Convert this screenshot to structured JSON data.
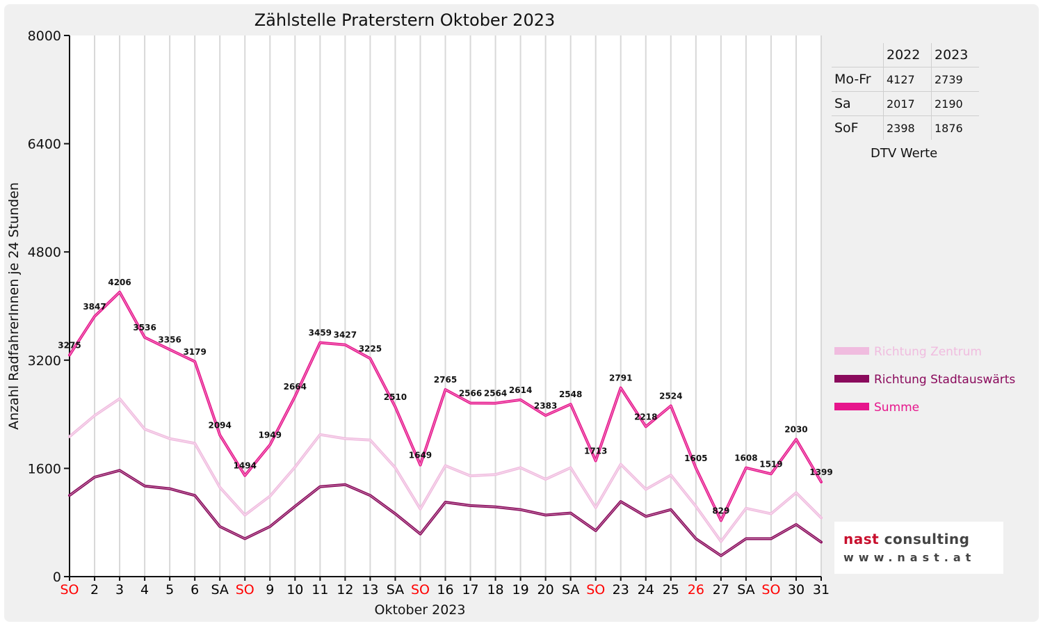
{
  "chart_data": {
    "type": "line",
    "title": "Zählstelle Praterstern Oktober 2023",
    "xlabel": "Oktober 2023",
    "ylabel": "Anzahl RadfahrerInnen je 24 Stunden",
    "ylim": [
      0,
      8000
    ],
    "yticks": [
      0,
      1600,
      3200,
      4800,
      6400,
      8000
    ],
    "grid": "vertical",
    "legend_position": "right",
    "categories": [
      "SO",
      "2",
      "3",
      "4",
      "5",
      "6",
      "SA",
      "SO",
      "9",
      "10",
      "11",
      "12",
      "13",
      "SA",
      "SO",
      "16",
      "17",
      "18",
      "19",
      "20",
      "SA",
      "SO",
      "23",
      "24",
      "25",
      "26",
      "27",
      "SA",
      "SO",
      "30",
      "31"
    ],
    "category_colors": [
      "#ff0000",
      "#000000",
      "#000000",
      "#000000",
      "#000000",
      "#000000",
      "#000000",
      "#ff0000",
      "#000000",
      "#000000",
      "#000000",
      "#000000",
      "#000000",
      "#000000",
      "#ff0000",
      "#000000",
      "#000000",
      "#000000",
      "#000000",
      "#000000",
      "#000000",
      "#ff0000",
      "#000000",
      "#000000",
      "#000000",
      "#ff0000",
      "#000000",
      "#000000",
      "#ff0000",
      "#000000",
      "#000000"
    ],
    "series": [
      {
        "name": "Richtung Zentrum",
        "color": "#f0bcdf",
        "values": [
          2070,
          2380,
          2630,
          2180,
          2040,
          1970,
          1320,
          910,
          1190,
          1620,
          2100,
          2040,
          2020,
          1610,
          1000,
          1640,
          1490,
          1510,
          1610,
          1440,
          1610,
          1020,
          1660,
          1290,
          1500,
          1040,
          520,
          1010,
          930,
          1240,
          870
        ]
      },
      {
        "name": "Richtung Stadtauswärts",
        "color": "#8a0a5c",
        "values": [
          1200,
          1470,
          1570,
          1340,
          1300,
          1200,
          740,
          560,
          740,
          1040,
          1330,
          1360,
          1200,
          930,
          630,
          1100,
          1050,
          1030,
          990,
          910,
          940,
          680,
          1110,
          890,
          990,
          560,
          310,
          560,
          560,
          770,
          510
        ]
      },
      {
        "name": "Summe",
        "color": "#e6168c",
        "values": [
          3275,
          3847,
          4206,
          3536,
          3356,
          3179,
          2094,
          1494,
          1949,
          2664,
          3459,
          3427,
          3225,
          2510,
          1649,
          2765,
          2566,
          2564,
          2614,
          2383,
          2548,
          1713,
          2791,
          2218,
          2524,
          1605,
          829,
          1608,
          1519,
          2030,
          1399
        ]
      }
    ],
    "data_labels": [
      "3275",
      "3847",
      "4206",
      "3536",
      "3356",
      "3179",
      "2094",
      "1494",
      "1949",
      "2664",
      "3459",
      "3427",
      "3225",
      "2510",
      "1649",
      "2765",
      "2566",
      "2564",
      "2614",
      "2383",
      "2548",
      "1713",
      "2791",
      "2218",
      "2524",
      "1605",
      "829",
      "1608",
      "1519",
      "2030",
      "1399"
    ]
  },
  "dtv_table": {
    "headers": [
      "2022",
      "2023"
    ],
    "rows": [
      {
        "label": "Mo-Fr",
        "v2022": "4127",
        "v2023": "2739"
      },
      {
        "label": "Sa",
        "v2022": "2017",
        "v2023": "2190"
      },
      {
        "label": "SoF",
        "v2022": "2398",
        "v2023": "1876"
      }
    ],
    "caption": "DTV Werte"
  },
  "logo": {
    "word1": "nast",
    "word2": "consulting",
    "url": "www.nast.at"
  }
}
